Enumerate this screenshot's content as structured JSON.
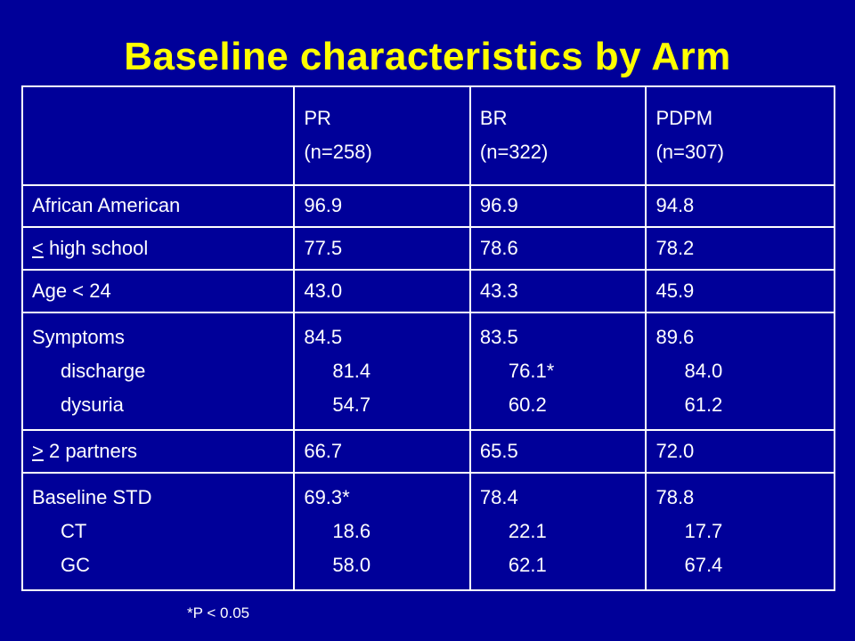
{
  "title": "Baseline characteristics by Arm",
  "columns": [
    {
      "name": "PR",
      "n": "(n=258)"
    },
    {
      "name": "BR",
      "n": "(n=322)"
    },
    {
      "name": "PDPM",
      "n": "(n=307)"
    }
  ],
  "rows": {
    "african_american": {
      "label": "African American",
      "values": [
        "96.9",
        "96.9",
        "94.8"
      ]
    },
    "high_school": {
      "symbol": "<",
      "label_rest": " high school",
      "values": [
        "77.5",
        "78.6",
        "78.2"
      ]
    },
    "age": {
      "label": "Age < 24",
      "values": [
        "43.0",
        "43.3",
        "45.9"
      ]
    },
    "symptoms": {
      "label": "Symptoms",
      "values": [
        "84.5",
        "83.5",
        "89.6"
      ],
      "sub": [
        {
          "label": "discharge",
          "values": [
            "81.4",
            "76.1*",
            "84.0"
          ]
        },
        {
          "label": "dysuria",
          "values": [
            "54.7",
            "60.2",
            "61.2"
          ]
        }
      ]
    },
    "partners": {
      "symbol": ">",
      "label_rest": " 2 partners",
      "values": [
        "66.7",
        "65.5",
        "72.0"
      ]
    },
    "baseline_std": {
      "label": "Baseline STD",
      "values": [
        "69.3*",
        "78.4",
        "78.8"
      ],
      "sub": [
        {
          "label": "CT",
          "values": [
            "18.6",
            "22.1",
            "17.7"
          ]
        },
        {
          "label": "GC",
          "values": [
            "58.0",
            "62.1",
            "67.4"
          ]
        }
      ]
    }
  },
  "footnote": "*P < 0.05",
  "colors": {
    "background": "#000099",
    "title": "#ffff00",
    "text": "#ffffff"
  }
}
